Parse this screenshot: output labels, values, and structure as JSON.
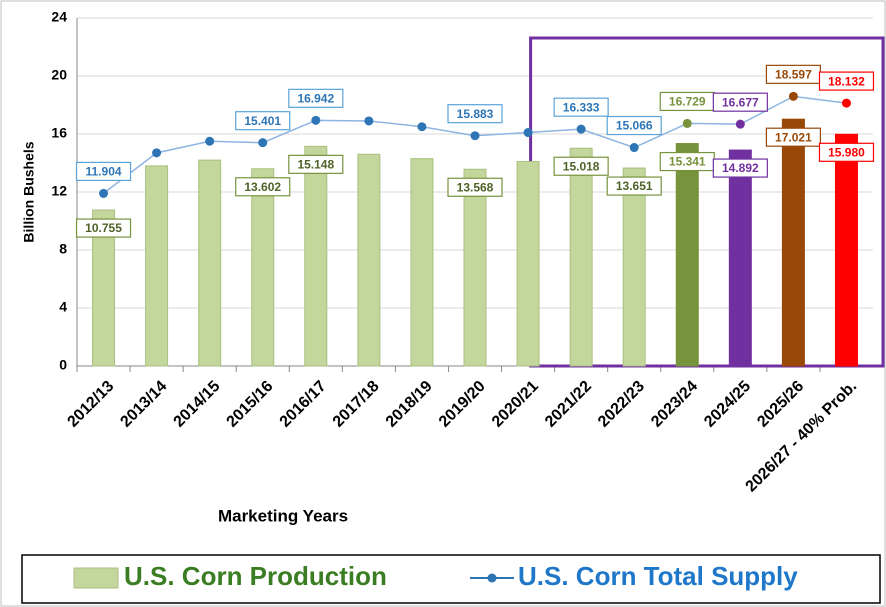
{
  "chart_data": {
    "type": "bar_line",
    "y_axis_label": "Billion Bushels",
    "x_axis_label": "Marketing Years",
    "categories": [
      "2012/13",
      "2013/14",
      "2014/15",
      "2015/16",
      "2016/17",
      "2017/18",
      "2018/19",
      "2019/20",
      "2020/21",
      "2021/22",
      "2022/23",
      "2023/24",
      "2024/25",
      "2025/26",
      "2026/27 - 40% Prob."
    ],
    "ylim": [
      0,
      24
    ],
    "yticks": [
      0,
      4,
      8,
      12,
      16,
      20,
      24
    ],
    "grid": true,
    "series": [
      {
        "name": "U.S. Corn Production",
        "kind": "bar",
        "color": "#c3d69b",
        "colors": [
          "#c3d69b",
          "#c3d69b",
          "#c3d69b",
          "#c3d69b",
          "#c3d69b",
          "#c3d69b",
          "#c3d69b",
          "#c3d69b",
          "#c3d69b",
          "#c3d69b",
          "#c3d69b",
          "#77933c",
          "#7030a0",
          "#984807",
          "#ff0000"
        ],
        "values": [
          10.755,
          13.8,
          14.2,
          13.602,
          15.148,
          14.6,
          14.3,
          13.568,
          14.1,
          15.018,
          13.651,
          15.341,
          14.892,
          17.021,
          15.98
        ],
        "value_labels": [
          "10.755",
          null,
          null,
          "13.602",
          "15.148",
          null,
          null,
          "13.568",
          null,
          "15.018",
          "13.651",
          "15.341",
          "14.892",
          "17.021",
          "15.980"
        ]
      },
      {
        "name": "U.S. Corn Total Supply",
        "kind": "line",
        "color": "#2e75b6",
        "colors": [
          "#2e75b6",
          "#2e75b6",
          "#2e75b6",
          "#2e75b6",
          "#2e75b6",
          "#2e75b6",
          "#2e75b6",
          "#2e75b6",
          "#2e75b6",
          "#2e75b6",
          "#2e75b6",
          "#77933c",
          "#7030a0",
          "#984807",
          "#ff0000"
        ],
        "values": [
          11.904,
          14.7,
          15.5,
          15.401,
          16.942,
          16.9,
          16.5,
          15.883,
          16.1,
          16.333,
          15.066,
          16.729,
          16.677,
          18.597,
          18.132
        ],
        "value_labels": [
          "11.904",
          null,
          null,
          "15.401",
          "16.942",
          null,
          null,
          "15.883",
          null,
          "16.333",
          "15.066",
          "16.729",
          "16.677",
          "18.597",
          "18.132"
        ]
      }
    ]
  }
}
